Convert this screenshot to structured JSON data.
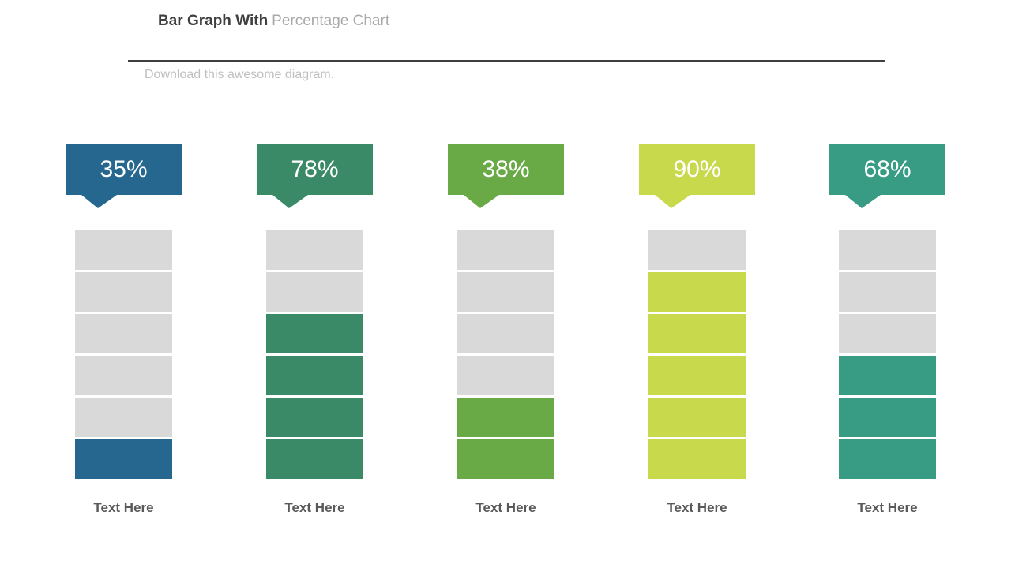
{
  "slide": {
    "title_bold": "Bar Graph With",
    "title_light": "Percentage Chart",
    "subtitle": "Download this awesome diagram.",
    "colors": {
      "background": "#FFFFFF",
      "title_dark": "#3F3F3F",
      "title_light": "#A9A9A9",
      "subtitle_gray": "#BFBFBF",
      "divider": "#3F3F3F",
      "category_label": "#595959"
    }
  },
  "chart_data": {
    "type": "bar",
    "title": "Bar Graph With Percentage Chart",
    "categories": [
      "Text Here",
      "Text Here",
      "Text Here",
      "Text Here",
      "Text Here"
    ],
    "values": [
      35,
      78,
      38,
      90,
      68
    ],
    "value_labels": [
      "35%",
      "78%",
      "38%",
      "90%",
      "68%"
    ],
    "ylim": [
      0,
      100
    ],
    "grid": false,
    "legend": "none",
    "segments_per_bar": 6,
    "filled_segments": [
      1,
      4,
      2,
      5,
      3
    ],
    "bar_colors": [
      "#26678F",
      "#3A8A68",
      "#6AAA46",
      "#C8D94B",
      "#389C85"
    ],
    "empty_segment_color": "#D9D9D9"
  }
}
